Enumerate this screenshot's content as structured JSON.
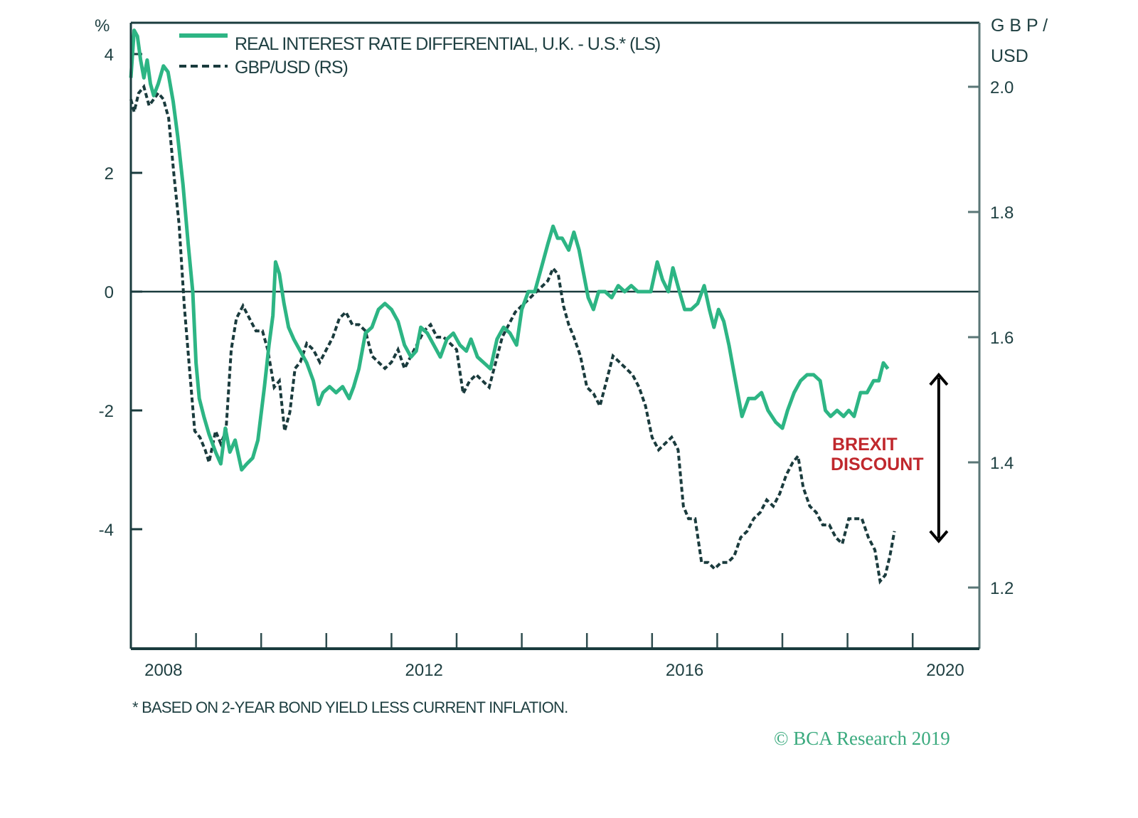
{
  "chart_data": {
    "type": "line",
    "title": "",
    "left_axis": {
      "label": "%",
      "ticks": [
        4,
        2,
        0,
        -2,
        -4
      ],
      "tick_labels": [
        "4",
        "2",
        "0",
        "-2",
        "-4"
      ],
      "range": [
        -6,
        4.5
      ]
    },
    "right_axis": {
      "label_line1": "G B P /",
      "label_line2": "USD",
      "ticks": [
        2.0,
        1.8,
        1.6,
        1.4,
        1.2
      ],
      "tick_labels": [
        "2.0",
        "1.8",
        "1.6",
        "1.4",
        "1.2"
      ],
      "range": [
        1.1,
        2.1
      ]
    },
    "x_axis": {
      "range": [
        2008.0,
        2021.0
      ],
      "tick_years": [
        2009,
        2010,
        2011,
        2012,
        2013,
        2014,
        2015,
        2016,
        2017,
        2018,
        2019,
        2020
      ],
      "labels": [
        {
          "text": "2008",
          "at": 2008.5
        },
        {
          "text": "2012",
          "at": 2012.5
        },
        {
          "text": "2016",
          "at": 2016.5
        },
        {
          "text": "2020",
          "at": 2020.5
        }
      ]
    },
    "zero_line": 0,
    "legend": {
      "position": "top-left",
      "entries": [
        {
          "label": "REAL INTEREST RATE DIFFERENTIAL, U.K. - U.S.* (LS)",
          "style": "solid",
          "color": "#2db584"
        },
        {
          "label": "GBP/USD (RS)",
          "style": "dashed",
          "color": "#1a3b3d"
        }
      ]
    },
    "series": [
      {
        "name": "REAL INTEREST RATE DIFFERENTIAL, U.K. - U.S.* (LS)",
        "axis": "left",
        "color": "#2db584",
        "style": "solid",
        "points": [
          [
            2008.0,
            3.6
          ],
          [
            2008.05,
            4.4
          ],
          [
            2008.1,
            4.3
          ],
          [
            2008.15,
            3.9
          ],
          [
            2008.2,
            3.6
          ],
          [
            2008.25,
            3.9
          ],
          [
            2008.3,
            3.5
          ],
          [
            2008.35,
            3.3
          ],
          [
            2008.42,
            3.5
          ],
          [
            2008.5,
            3.8
          ],
          [
            2008.57,
            3.7
          ],
          [
            2008.65,
            3.2
          ],
          [
            2008.72,
            2.6
          ],
          [
            2008.8,
            1.8
          ],
          [
            2008.88,
            0.8
          ],
          [
            2008.95,
            0.0
          ],
          [
            2009.0,
            -1.2
          ],
          [
            2009.05,
            -1.8
          ],
          [
            2009.12,
            -2.1
          ],
          [
            2009.2,
            -2.4
          ],
          [
            2009.3,
            -2.7
          ],
          [
            2009.38,
            -2.9
          ],
          [
            2009.45,
            -2.3
          ],
          [
            2009.52,
            -2.7
          ],
          [
            2009.6,
            -2.5
          ],
          [
            2009.7,
            -3.0
          ],
          [
            2009.78,
            -2.9
          ],
          [
            2009.87,
            -2.8
          ],
          [
            2009.95,
            -2.5
          ],
          [
            2010.05,
            -1.6
          ],
          [
            2010.12,
            -0.9
          ],
          [
            2010.18,
            -0.4
          ],
          [
            2010.22,
            0.5
          ],
          [
            2010.28,
            0.3
          ],
          [
            2010.35,
            -0.2
          ],
          [
            2010.42,
            -0.6
          ],
          [
            2010.5,
            -0.8
          ],
          [
            2010.6,
            -1.0
          ],
          [
            2010.7,
            -1.2
          ],
          [
            2010.8,
            -1.5
          ],
          [
            2010.88,
            -1.9
          ],
          [
            2010.95,
            -1.7
          ],
          [
            2011.05,
            -1.6
          ],
          [
            2011.15,
            -1.7
          ],
          [
            2011.25,
            -1.6
          ],
          [
            2011.35,
            -1.8
          ],
          [
            2011.42,
            -1.6
          ],
          [
            2011.5,
            -1.3
          ],
          [
            2011.6,
            -0.7
          ],
          [
            2011.7,
            -0.6
          ],
          [
            2011.8,
            -0.3
          ],
          [
            2011.9,
            -0.2
          ],
          [
            2012.0,
            -0.3
          ],
          [
            2012.1,
            -0.5
          ],
          [
            2012.2,
            -0.9
          ],
          [
            2012.3,
            -1.1
          ],
          [
            2012.38,
            -1.0
          ],
          [
            2012.45,
            -0.6
          ],
          [
            2012.55,
            -0.7
          ],
          [
            2012.65,
            -0.9
          ],
          [
            2012.75,
            -1.1
          ],
          [
            2012.85,
            -0.8
          ],
          [
            2012.95,
            -0.7
          ],
          [
            2013.05,
            -0.9
          ],
          [
            2013.15,
            -1.0
          ],
          [
            2013.22,
            -0.8
          ],
          [
            2013.32,
            -1.1
          ],
          [
            2013.42,
            -1.2
          ],
          [
            2013.52,
            -1.3
          ],
          [
            2013.62,
            -0.8
          ],
          [
            2013.72,
            -0.6
          ],
          [
            2013.82,
            -0.7
          ],
          [
            2013.92,
            -0.9
          ],
          [
            2014.0,
            -0.3
          ],
          [
            2014.1,
            0.0
          ],
          [
            2014.2,
            0.0
          ],
          [
            2014.3,
            0.4
          ],
          [
            2014.4,
            0.8
          ],
          [
            2014.48,
            1.1
          ],
          [
            2014.55,
            0.9
          ],
          [
            2014.62,
            0.9
          ],
          [
            2014.72,
            0.7
          ],
          [
            2014.8,
            1.0
          ],
          [
            2014.88,
            0.7
          ],
          [
            2014.95,
            0.3
          ],
          [
            2015.02,
            -0.1
          ],
          [
            2015.1,
            -0.3
          ],
          [
            2015.18,
            0.0
          ],
          [
            2015.28,
            0.0
          ],
          [
            2015.38,
            -0.1
          ],
          [
            2015.48,
            0.1
          ],
          [
            2015.58,
            0.0
          ],
          [
            2015.68,
            0.1
          ],
          [
            2015.78,
            0.0
          ],
          [
            2015.88,
            0.0
          ],
          [
            2015.98,
            0.0
          ],
          [
            2016.08,
            0.5
          ],
          [
            2016.16,
            0.2
          ],
          [
            2016.25,
            0.0
          ],
          [
            2016.32,
            0.4
          ],
          [
            2016.42,
            0.0
          ],
          [
            2016.5,
            -0.3
          ],
          [
            2016.6,
            -0.3
          ],
          [
            2016.7,
            -0.2
          ],
          [
            2016.8,
            0.1
          ],
          [
            2016.88,
            -0.3
          ],
          [
            2016.95,
            -0.6
          ],
          [
            2017.02,
            -0.3
          ],
          [
            2017.1,
            -0.5
          ],
          [
            2017.18,
            -0.9
          ],
          [
            2017.28,
            -1.5
          ],
          [
            2017.38,
            -2.1
          ],
          [
            2017.48,
            -1.8
          ],
          [
            2017.58,
            -1.8
          ],
          [
            2017.68,
            -1.7
          ],
          [
            2017.78,
            -2.0
          ],
          [
            2017.9,
            -2.2
          ],
          [
            2018.0,
            -2.3
          ],
          [
            2018.08,
            -2.0
          ],
          [
            2018.18,
            -1.7
          ],
          [
            2018.28,
            -1.5
          ],
          [
            2018.38,
            -1.4
          ],
          [
            2018.48,
            -1.4
          ],
          [
            2018.58,
            -1.5
          ],
          [
            2018.66,
            -2.0
          ],
          [
            2018.74,
            -2.1
          ],
          [
            2018.84,
            -2.0
          ],
          [
            2018.94,
            -2.1
          ],
          [
            2019.02,
            -2.0
          ],
          [
            2019.1,
            -2.1
          ],
          [
            2019.2,
            -1.7
          ],
          [
            2019.3,
            -1.7
          ],
          [
            2019.4,
            -1.5
          ],
          [
            2019.48,
            -1.5
          ],
          [
            2019.55,
            -1.2
          ],
          [
            2019.62,
            -1.3
          ]
        ]
      },
      {
        "name": "GBP/USD (RS)",
        "axis": "right",
        "color": "#1a3b3d",
        "style": "dashed",
        "points": [
          [
            2008.0,
            1.98
          ],
          [
            2008.05,
            1.96
          ],
          [
            2008.12,
            1.99
          ],
          [
            2008.2,
            2.0
          ],
          [
            2008.28,
            1.97
          ],
          [
            2008.35,
            1.98
          ],
          [
            2008.42,
            1.99
          ],
          [
            2008.5,
            1.98
          ],
          [
            2008.58,
            1.95
          ],
          [
            2008.66,
            1.86
          ],
          [
            2008.74,
            1.78
          ],
          [
            2008.82,
            1.65
          ],
          [
            2008.9,
            1.55
          ],
          [
            2008.98,
            1.45
          ],
          [
            2009.06,
            1.44
          ],
          [
            2009.14,
            1.42
          ],
          [
            2009.2,
            1.4
          ],
          [
            2009.3,
            1.45
          ],
          [
            2009.38,
            1.43
          ],
          [
            2009.46,
            1.45
          ],
          [
            2009.54,
            1.58
          ],
          [
            2009.62,
            1.63
          ],
          [
            2009.72,
            1.65
          ],
          [
            2009.82,
            1.63
          ],
          [
            2009.92,
            1.61
          ],
          [
            2010.02,
            1.61
          ],
          [
            2010.1,
            1.58
          ],
          [
            2010.2,
            1.52
          ],
          [
            2010.28,
            1.53
          ],
          [
            2010.36,
            1.45
          ],
          [
            2010.44,
            1.48
          ],
          [
            2010.52,
            1.55
          ],
          [
            2010.6,
            1.56
          ],
          [
            2010.7,
            1.59
          ],
          [
            2010.8,
            1.58
          ],
          [
            2010.9,
            1.56
          ],
          [
            2011.0,
            1.58
          ],
          [
            2011.1,
            1.6
          ],
          [
            2011.2,
            1.63
          ],
          [
            2011.3,
            1.64
          ],
          [
            2011.4,
            1.62
          ],
          [
            2011.5,
            1.62
          ],
          [
            2011.6,
            1.61
          ],
          [
            2011.7,
            1.57
          ],
          [
            2011.8,
            1.56
          ],
          [
            2011.9,
            1.55
          ],
          [
            2012.0,
            1.56
          ],
          [
            2012.1,
            1.58
          ],
          [
            2012.2,
            1.55
          ],
          [
            2012.3,
            1.57
          ],
          [
            2012.4,
            1.59
          ],
          [
            2012.5,
            1.61
          ],
          [
            2012.6,
            1.62
          ],
          [
            2012.7,
            1.6
          ],
          [
            2012.8,
            1.6
          ],
          [
            2013.0,
            1.58
          ],
          [
            2013.1,
            1.51
          ],
          [
            2013.2,
            1.53
          ],
          [
            2013.3,
            1.54
          ],
          [
            2013.4,
            1.53
          ],
          [
            2013.5,
            1.52
          ],
          [
            2013.6,
            1.56
          ],
          [
            2013.7,
            1.6
          ],
          [
            2013.8,
            1.62
          ],
          [
            2013.9,
            1.64
          ],
          [
            2014.0,
            1.65
          ],
          [
            2014.1,
            1.66
          ],
          [
            2014.2,
            1.67
          ],
          [
            2014.3,
            1.68
          ],
          [
            2014.4,
            1.69
          ],
          [
            2014.48,
            1.71
          ],
          [
            2014.56,
            1.7
          ],
          [
            2014.64,
            1.65
          ],
          [
            2014.72,
            1.62
          ],
          [
            2014.8,
            1.6
          ],
          [
            2014.9,
            1.57
          ],
          [
            2015.0,
            1.52
          ],
          [
            2015.1,
            1.51
          ],
          [
            2015.2,
            1.49
          ],
          [
            2015.3,
            1.53
          ],
          [
            2015.4,
            1.57
          ],
          [
            2015.5,
            1.56
          ],
          [
            2015.6,
            1.55
          ],
          [
            2015.7,
            1.54
          ],
          [
            2015.8,
            1.52
          ],
          [
            2015.9,
            1.49
          ],
          [
            2016.0,
            1.44
          ],
          [
            2016.1,
            1.42
          ],
          [
            2016.2,
            1.43
          ],
          [
            2016.3,
            1.44
          ],
          [
            2016.4,
            1.42
          ],
          [
            2016.48,
            1.33
          ],
          [
            2016.56,
            1.31
          ],
          [
            2016.66,
            1.31
          ],
          [
            2016.76,
            1.24
          ],
          [
            2016.86,
            1.24
          ],
          [
            2016.96,
            1.23
          ],
          [
            2017.06,
            1.24
          ],
          [
            2017.16,
            1.24
          ],
          [
            2017.26,
            1.25
          ],
          [
            2017.36,
            1.28
          ],
          [
            2017.46,
            1.29
          ],
          [
            2017.56,
            1.31
          ],
          [
            2017.66,
            1.32
          ],
          [
            2017.76,
            1.34
          ],
          [
            2017.86,
            1.33
          ],
          [
            2017.96,
            1.35
          ],
          [
            2018.06,
            1.38
          ],
          [
            2018.16,
            1.4
          ],
          [
            2018.24,
            1.41
          ],
          [
            2018.32,
            1.36
          ],
          [
            2018.42,
            1.33
          ],
          [
            2018.52,
            1.32
          ],
          [
            2018.62,
            1.3
          ],
          [
            2018.72,
            1.3
          ],
          [
            2018.82,
            1.28
          ],
          [
            2018.92,
            1.27
          ],
          [
            2019.02,
            1.31
          ],
          [
            2019.12,
            1.31
          ],
          [
            2019.22,
            1.31
          ],
          [
            2019.32,
            1.28
          ],
          [
            2019.42,
            1.26
          ],
          [
            2019.5,
            1.21
          ],
          [
            2019.58,
            1.22
          ],
          [
            2019.65,
            1.25
          ],
          [
            2019.72,
            1.29
          ]
        ]
      }
    ],
    "annotations": [
      {
        "type": "text",
        "lines": [
          "BREXIT",
          "DISCOUNT"
        ],
        "color": "#c0282d"
      },
      {
        "type": "double-arrow",
        "from_left_value": -1.4,
        "to_left_value": -4.2,
        "at_year": 2020.4,
        "color": "#000000"
      }
    ],
    "footnote": "* BASED ON 2-YEAR BOND YIELD LESS CURRENT INFLATION.",
    "source": "© BCA Research 2019"
  }
}
